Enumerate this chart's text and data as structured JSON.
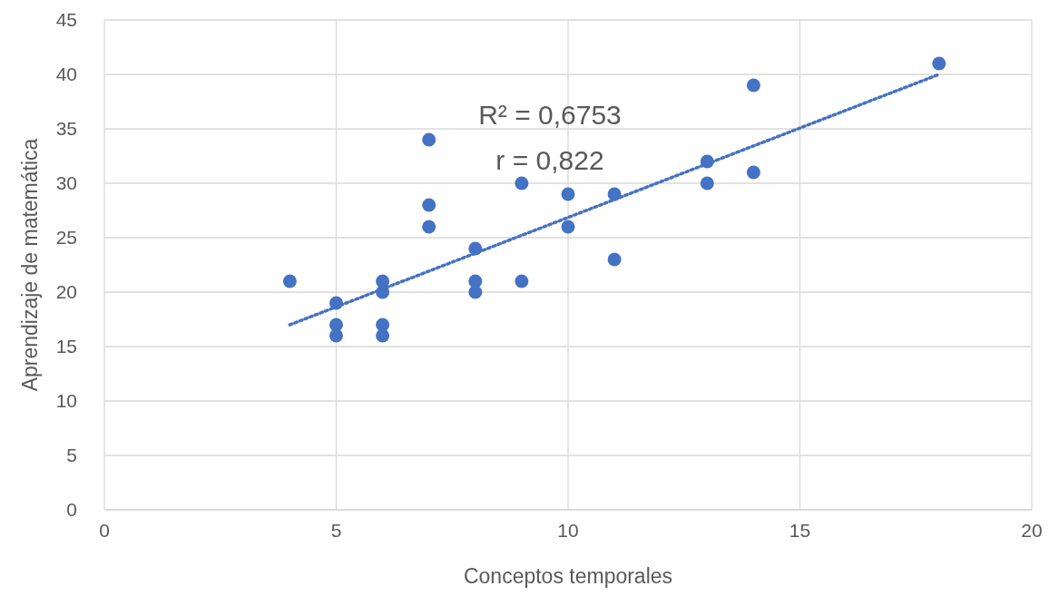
{
  "chart_data": {
    "type": "scatter",
    "xlabel": "Conceptos temporales",
    "ylabel": "Aprendizaje de matemática",
    "xlim": [
      0,
      20
    ],
    "xticks": [
      0,
      5,
      10,
      15,
      20
    ],
    "ylim": [
      0,
      45
    ],
    "yticks": [
      0,
      5,
      10,
      15,
      20,
      25,
      30,
      35,
      40,
      45
    ],
    "grid": true,
    "annotations": [
      "R² = 0,6753",
      "r = 0,822"
    ],
    "series": [
      {
        "marker": "circle",
        "color": "#4472c4",
        "x": [
          4,
          5,
          5,
          5,
          6,
          6,
          6,
          6,
          7,
          7,
          7,
          8,
          8,
          8,
          9,
          9,
          10,
          10,
          11,
          11,
          13,
          13,
          14,
          14,
          18
        ],
        "values": [
          21,
          19,
          17,
          16,
          21,
          20,
          17,
          16,
          34,
          28,
          26,
          24,
          21,
          20,
          30,
          21,
          29,
          26,
          29,
          23,
          32,
          30,
          39,
          31,
          41
        ]
      },
      {
        "type": "line",
        "marker": "none",
        "color": "#4472c4",
        "line_style": "dotted",
        "x": [
          4,
          18
        ],
        "values": [
          17,
          40
        ]
      }
    ]
  }
}
